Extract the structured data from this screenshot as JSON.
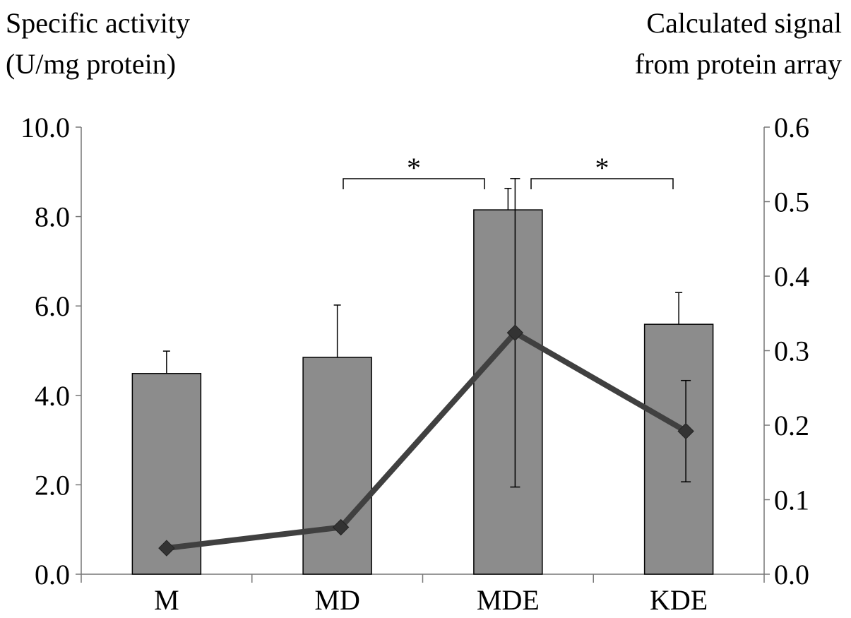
{
  "chart_data": {
    "type": "bar",
    "categories": [
      "M",
      "MD",
      "MDE",
      "KDE"
    ],
    "left_axis": {
      "label_lines": [
        "Specific activity",
        "(U/mg protein)"
      ],
      "ylim": [
        0,
        10
      ],
      "ticks": [
        "0.0",
        "2.0",
        "4.0",
        "6.0",
        "8.0",
        "10.0"
      ]
    },
    "right_axis": {
      "label_lines": [
        "Calculated signal",
        "from protein array"
      ],
      "ylim": [
        0,
        0.6
      ],
      "ticks": [
        "0.0",
        "0.1",
        "0.2",
        "0.3",
        "0.4",
        "0.5",
        "0.6"
      ]
    },
    "series": [
      {
        "name": "Specific activity",
        "type": "bar",
        "axis": "left",
        "color": "#8c8c8c",
        "values": [
          4.49,
          4.85,
          8.15,
          5.59
        ],
        "error": [
          0.5,
          1.17,
          0.48,
          0.71
        ]
      },
      {
        "name": "Calculated signal from protein array",
        "type": "line",
        "axis": "right",
        "color": "#404040",
        "values": [
          0.035,
          0.063,
          0.324,
          0.192
        ],
        "error": [
          null,
          null,
          0.207,
          0.068
        ]
      }
    ],
    "annotations": [
      {
        "text": "*",
        "between": [
          "MD",
          "MDE"
        ]
      },
      {
        "text": "*",
        "between": [
          "MDE",
          "KDE"
        ]
      }
    ],
    "grid": false
  }
}
